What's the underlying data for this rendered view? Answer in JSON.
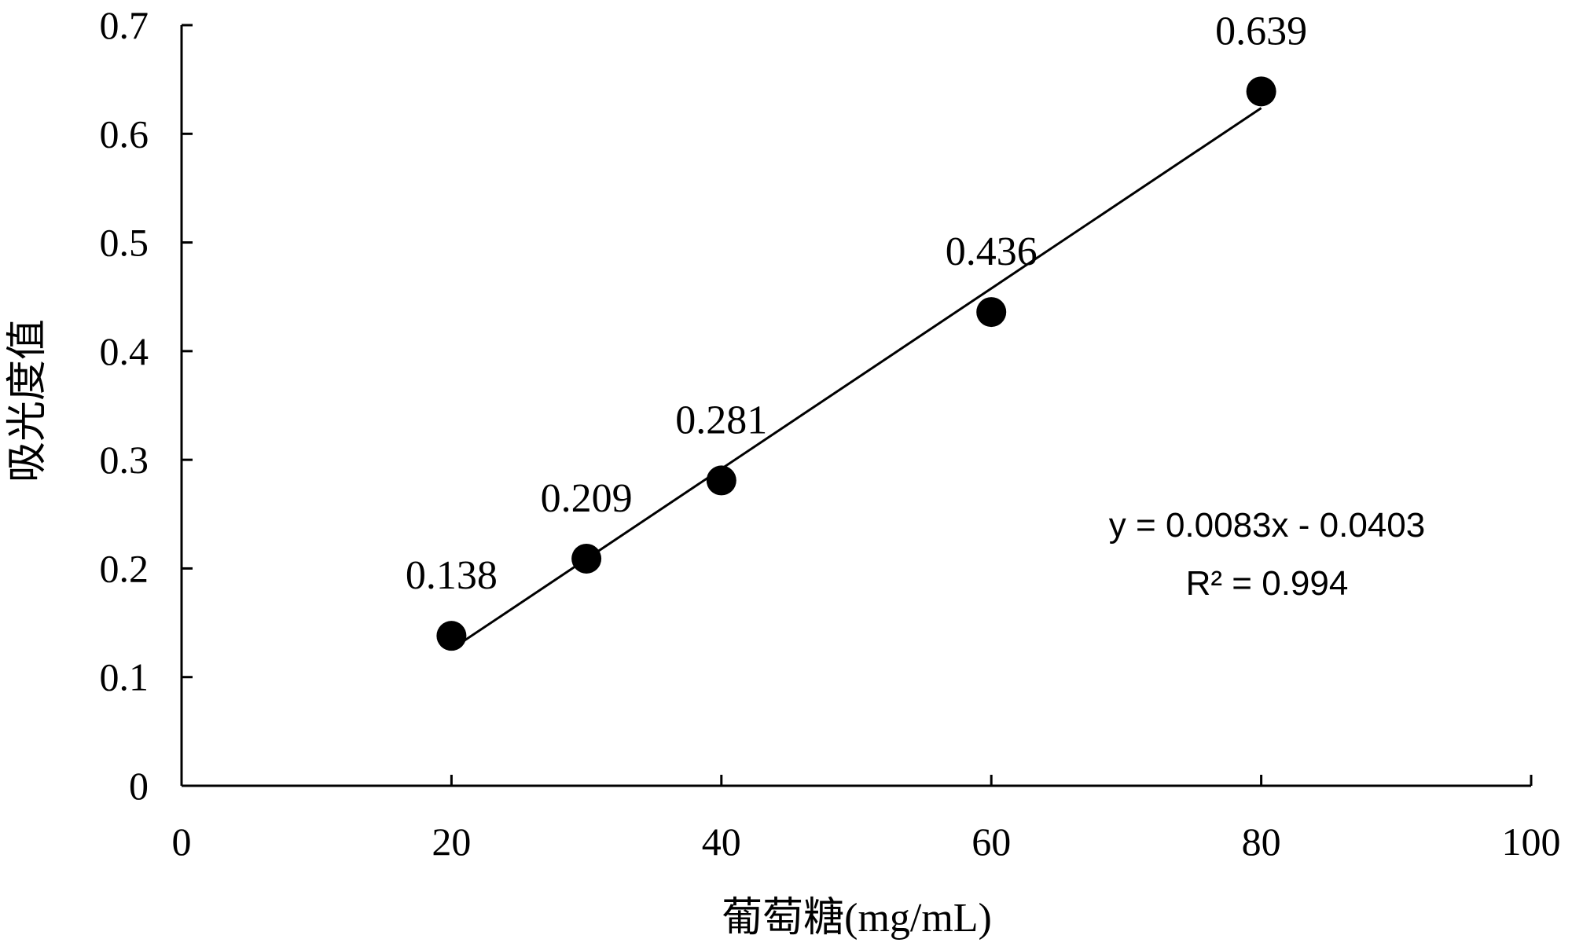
{
  "chart_data": {
    "type": "scatter",
    "xlabel": "葡萄糖(mg/mL)",
    "ylabel": "吸光度值",
    "xlim": [
      0,
      100
    ],
    "ylim": [
      0,
      0.7
    ],
    "x_ticks": [
      "0",
      "20",
      "40",
      "60",
      "80",
      "100"
    ],
    "y_ticks": [
      "0",
      "0.1",
      "0.2",
      "0.3",
      "0.4",
      "0.5",
      "0.6",
      "0.7"
    ],
    "grid": false,
    "series": [
      {
        "x": [
          20,
          30,
          40,
          60,
          80
        ],
        "y": [
          0.138,
          0.209,
          0.281,
          0.436,
          0.639
        ],
        "labels": [
          "0.138",
          "0.209",
          "0.281",
          "0.436",
          "0.639"
        ],
        "color": "#000000"
      }
    ],
    "trendline": {
      "slope": 0.0083,
      "intercept": -0.0403,
      "x_range": [
        20,
        80
      ],
      "equation": "y = 0.0083x - 0.0403",
      "r_squared": "R² = 0.994"
    }
  }
}
